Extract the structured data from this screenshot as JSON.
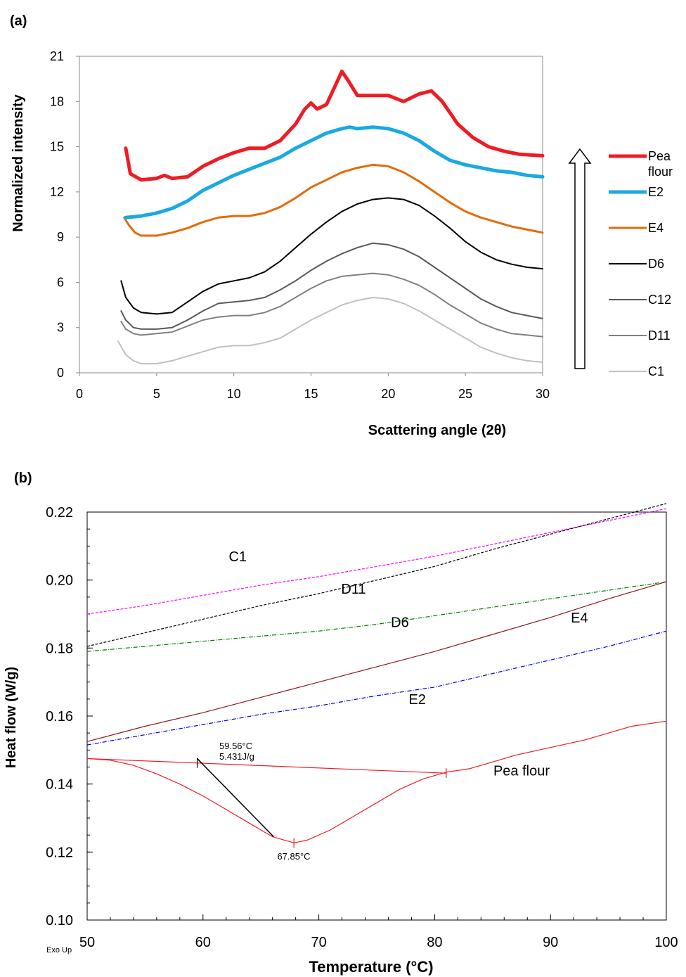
{
  "chart_data": [
    {
      "panel": "(a)",
      "type": "line",
      "xlabel": "Scattering angle (2θ)",
      "ylabel": "Normalized intensity",
      "xlim": [
        0,
        30
      ],
      "ylim": [
        0,
        21
      ],
      "xticks": [
        0,
        5,
        10,
        15,
        20,
        25,
        30
      ],
      "yticks": [
        0,
        3,
        6,
        9,
        12,
        15,
        18,
        21
      ],
      "grid": false,
      "legend": "right",
      "series": [
        {
          "name": "Pea flour",
          "color": "#ee1c25",
          "width": 5,
          "x": [
            3.0,
            3.3,
            4.0,
            5.0,
            5.5,
            6.0,
            7.0,
            8.0,
            9.0,
            10.0,
            11.0,
            12.0,
            13.0,
            14.0,
            14.6,
            15.0,
            15.4,
            16.0,
            16.5,
            17.0,
            17.4,
            18.0,
            19.0,
            20.0,
            21.0,
            22.0,
            22.8,
            23.5,
            24.5,
            25.5,
            26.5,
            27.5,
            28.5,
            30.0
          ],
          "y": [
            14.9,
            13.2,
            12.8,
            12.9,
            13.1,
            12.9,
            13.0,
            13.7,
            14.2,
            14.6,
            14.9,
            14.9,
            15.4,
            16.5,
            17.5,
            17.9,
            17.5,
            17.8,
            18.9,
            20.0,
            19.4,
            18.4,
            18.4,
            18.4,
            18.0,
            18.5,
            18.7,
            18.0,
            16.5,
            15.6,
            15.0,
            14.7,
            14.5,
            14.4
          ]
        },
        {
          "name": "E2",
          "color": "#1ba9e1",
          "width": 5,
          "x": [
            3.0,
            4.0,
            5.0,
            6.0,
            7.0,
            8.0,
            9.0,
            10.0,
            11.0,
            12.0,
            13.0,
            14.0,
            15.0,
            16.0,
            17.0,
            17.5,
            18.0,
            19.0,
            20.0,
            21.0,
            22.0,
            23.0,
            24.0,
            25.0,
            26.0,
            27.0,
            28.0,
            29.0,
            30.0
          ],
          "y": [
            10.3,
            10.4,
            10.6,
            10.9,
            11.4,
            12.1,
            12.6,
            13.1,
            13.5,
            13.9,
            14.3,
            14.9,
            15.4,
            15.9,
            16.2,
            16.3,
            16.2,
            16.3,
            16.2,
            15.9,
            15.4,
            14.7,
            14.1,
            13.8,
            13.6,
            13.4,
            13.3,
            13.1,
            13.0
          ]
        },
        {
          "name": "E4",
          "color": "#e36c0a",
          "width": 3,
          "x": [
            2.9,
            3.2,
            3.6,
            4.0,
            5.0,
            6.0,
            7.0,
            8.0,
            9.0,
            10.0,
            11.0,
            12.0,
            13.0,
            14.0,
            15.0,
            16.0,
            17.0,
            18.0,
            19.0,
            20.0,
            21.0,
            22.0,
            23.0,
            24.0,
            25.0,
            26.0,
            27.0,
            28.0,
            29.0,
            30.0
          ],
          "y": [
            10.3,
            9.8,
            9.3,
            9.1,
            9.1,
            9.3,
            9.6,
            10.0,
            10.3,
            10.4,
            10.4,
            10.6,
            11.0,
            11.6,
            12.3,
            12.8,
            13.3,
            13.6,
            13.8,
            13.7,
            13.3,
            12.7,
            12.0,
            11.3,
            10.7,
            10.3,
            10.0,
            9.7,
            9.5,
            9.3
          ]
        },
        {
          "name": "D6",
          "color": "#000000",
          "width": 2,
          "x": [
            2.7,
            3.0,
            3.5,
            4.0,
            5.0,
            6.0,
            7.0,
            8.0,
            9.0,
            10.0,
            11.0,
            12.0,
            13.0,
            14.0,
            15.0,
            16.0,
            17.0,
            18.0,
            19.0,
            20.0,
            21.0,
            22.0,
            23.0,
            24.0,
            25.0,
            26.0,
            27.0,
            28.0,
            29.0,
            30.0
          ],
          "y": [
            6.1,
            5.0,
            4.3,
            4.0,
            3.9,
            4.0,
            4.7,
            5.4,
            5.9,
            6.1,
            6.3,
            6.7,
            7.4,
            8.3,
            9.2,
            10.0,
            10.7,
            11.2,
            11.5,
            11.6,
            11.5,
            11.1,
            10.4,
            9.6,
            8.7,
            8.0,
            7.5,
            7.2,
            7.0,
            6.9
          ]
        },
        {
          "name": "C12",
          "color": "#595959",
          "width": 2,
          "x": [
            2.7,
            3.0,
            3.5,
            4.0,
            5.0,
            6.0,
            7.0,
            8.0,
            9.0,
            10.0,
            11.0,
            12.0,
            13.0,
            14.0,
            15.0,
            16.0,
            17.0,
            18.0,
            19.0,
            20.0,
            21.0,
            22.0,
            23.0,
            24.0,
            25.0,
            26.0,
            27.0,
            28.0,
            29.0,
            30.0
          ],
          "y": [
            4.1,
            3.5,
            3.0,
            2.9,
            2.9,
            3.0,
            3.5,
            4.1,
            4.6,
            4.7,
            4.8,
            5.0,
            5.5,
            6.1,
            6.8,
            7.4,
            7.9,
            8.3,
            8.6,
            8.5,
            8.2,
            7.7,
            7.0,
            6.3,
            5.6,
            4.9,
            4.4,
            4.0,
            3.8,
            3.6
          ]
        },
        {
          "name": "D11",
          "color": "#808080",
          "width": 2,
          "x": [
            2.7,
            3.0,
            3.5,
            4.0,
            5.0,
            6.0,
            7.0,
            8.0,
            9.0,
            10.0,
            11.0,
            12.0,
            13.0,
            14.0,
            15.0,
            16.0,
            17.0,
            18.0,
            19.0,
            20.0,
            21.0,
            22.0,
            23.0,
            24.0,
            25.0,
            26.0,
            27.0,
            28.0,
            29.0,
            30.0
          ],
          "y": [
            3.4,
            2.9,
            2.6,
            2.5,
            2.6,
            2.7,
            3.1,
            3.5,
            3.7,
            3.8,
            3.8,
            4.0,
            4.4,
            5.0,
            5.6,
            6.1,
            6.4,
            6.5,
            6.6,
            6.5,
            6.2,
            5.8,
            5.2,
            4.5,
            3.9,
            3.3,
            2.9,
            2.6,
            2.5,
            2.4
          ]
        },
        {
          "name": "C1",
          "color": "#c0c0c0",
          "width": 2,
          "x": [
            2.5,
            3.0,
            3.5,
            4.0,
            5.0,
            6.0,
            7.0,
            8.0,
            9.0,
            10.0,
            11.0,
            12.0,
            13.0,
            14.0,
            15.0,
            16.0,
            17.0,
            18.0,
            19.0,
            20.0,
            21.0,
            22.0,
            23.0,
            24.0,
            25.0,
            26.0,
            27.0,
            28.0,
            29.0,
            30.0
          ],
          "y": [
            2.1,
            1.2,
            0.8,
            0.6,
            0.6,
            0.8,
            1.1,
            1.4,
            1.7,
            1.8,
            1.8,
            2.0,
            2.3,
            2.9,
            3.5,
            4.0,
            4.5,
            4.8,
            5.0,
            4.9,
            4.6,
            4.1,
            3.5,
            2.9,
            2.3,
            1.7,
            1.3,
            1.0,
            0.8,
            0.7
          ]
        }
      ]
    },
    {
      "panel": "(b)",
      "type": "line",
      "xlabel": "Temperature (°C)",
      "ylabel": "Heat flow (W/g)",
      "xlim": [
        50,
        100
      ],
      "ylim": [
        0.1,
        0.22
      ],
      "xticks": [
        50,
        60,
        70,
        80,
        90,
        100
      ],
      "yticks": [
        "0.10",
        "0.12",
        "0.14",
        "0.16",
        "0.18",
        "0.20",
        "0.22"
      ],
      "grid": false,
      "corner_label": "Exo Up",
      "series": [
        {
          "name": "C1",
          "color": "#ff00ff",
          "dash": "4,2",
          "x": [
            50,
            55,
            60,
            65,
            70,
            75,
            80,
            85,
            90,
            95,
            100
          ],
          "y": [
            0.19,
            0.1925,
            0.1955,
            0.1985,
            0.201,
            0.204,
            0.207,
            0.2105,
            0.214,
            0.2175,
            0.221
          ]
        },
        {
          "name": "D11",
          "color": "#000000",
          "dash": "4,2",
          "x": [
            50,
            55,
            60,
            65,
            70,
            75,
            80,
            85,
            90,
            95,
            100
          ],
          "y": [
            0.1805,
            0.1845,
            0.1885,
            0.1925,
            0.196,
            0.2,
            0.204,
            0.209,
            0.2135,
            0.218,
            0.2225
          ]
        },
        {
          "name": "D6",
          "color": "#008000",
          "dash": "6,2,1,2",
          "x": [
            50,
            55,
            60,
            65,
            70,
            75,
            80,
            85,
            90,
            95,
            100
          ],
          "y": [
            0.179,
            0.1805,
            0.182,
            0.1835,
            0.185,
            0.187,
            0.1895,
            0.192,
            0.1945,
            0.197,
            0.1995
          ]
        },
        {
          "name": "E4",
          "color": "#8b1a1a",
          "dash": "",
          "x": [
            50,
            55,
            60,
            65,
            70,
            75,
            80,
            85,
            90,
            95,
            100
          ],
          "y": [
            0.1525,
            0.157,
            0.161,
            0.1655,
            0.17,
            0.1745,
            0.179,
            0.184,
            0.189,
            0.1945,
            0.1995
          ]
        },
        {
          "name": "E2",
          "color": "#0000dd",
          "dash": "6,2,1,2",
          "x": [
            50,
            55,
            60,
            65,
            70,
            75,
            80,
            85,
            90,
            95,
            100
          ],
          "y": [
            0.1515,
            0.1545,
            0.1575,
            0.1605,
            0.163,
            0.166,
            0.1685,
            0.1725,
            0.1765,
            0.1805,
            0.185
          ]
        },
        {
          "name": "Pea flour",
          "color": "#ee1c25",
          "dash": "",
          "x": [
            50,
            52,
            54,
            56,
            58,
            60,
            62,
            64,
            66,
            67.85,
            69,
            71,
            73,
            75,
            77,
            79,
            81,
            83,
            85,
            87,
            89,
            91,
            93,
            95,
            97,
            100
          ],
          "y": [
            0.1475,
            0.147,
            0.1455,
            0.143,
            0.14,
            0.1365,
            0.1325,
            0.1285,
            0.1245,
            0.1227,
            0.1235,
            0.1265,
            0.1305,
            0.1345,
            0.1385,
            0.1415,
            0.1435,
            0.1445,
            0.1465,
            0.1485,
            0.15,
            0.1515,
            0.153,
            0.155,
            0.157,
            0.1585
          ]
        }
      ],
      "annotations": {
        "onset_label": "59.56°C",
        "enthalpy_label": "5.431J/g",
        "peak_label": "67.85°C"
      }
    }
  ],
  "labels": {
    "panel_a": "(a)",
    "panel_b": "(b)"
  }
}
